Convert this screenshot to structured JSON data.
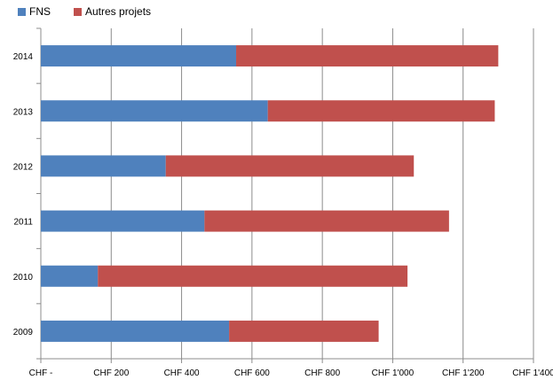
{
  "chart_data": {
    "type": "bar",
    "orientation": "horizontal",
    "stacked": true,
    "categories": [
      "2014",
      "2013",
      "2012",
      "2011",
      "2010",
      "2009"
    ],
    "series": [
      {
        "name": "FNS",
        "color": "#4f81bd",
        "values": [
          555,
          645,
          355,
          465,
          162,
          535
        ]
      },
      {
        "name": "Autres projets",
        "color": "#c0504d",
        "values": [
          745,
          645,
          705,
          695,
          880,
          425
        ]
      }
    ],
    "xlim": [
      0,
      1400
    ],
    "x_ticks": [
      0,
      200,
      400,
      600,
      800,
      1000,
      1200,
      1400
    ],
    "x_tick_labels": [
      "CHF -",
      "CHF 200",
      "CHF 400",
      "CHF 600",
      "CHF 800",
      "CHF 1'000",
      "CHF 1'200",
      "CHF 1'400"
    ],
    "grid": "vertical",
    "legend_position": "top-left",
    "title": "",
    "xlabel": "",
    "ylabel": ""
  }
}
